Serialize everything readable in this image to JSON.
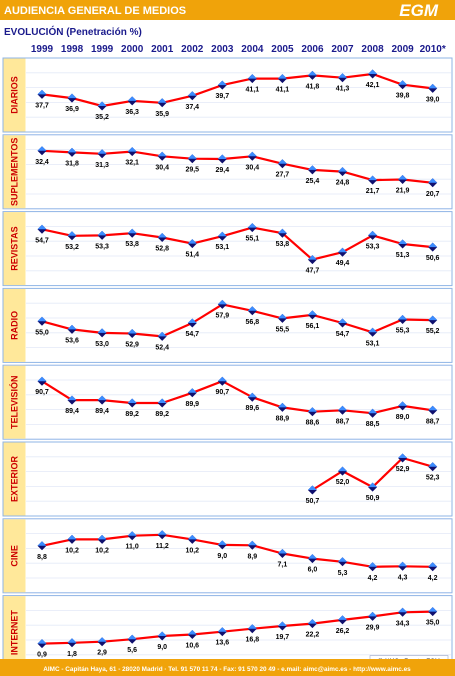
{
  "header": {
    "title": "AUDIENCIA GENERAL DE MEDIOS",
    "logo_text": "EGM",
    "bg_color": "#f0a30a"
  },
  "subtitle": "EVOLUCIÓN  (Penetración %)",
  "years": [
    "1999",
    "1998",
    "1999",
    "2000",
    "2001",
    "2002",
    "2003",
    "2004",
    "2005",
    "2006",
    "2007",
    "2008",
    "2009",
    "2010*"
  ],
  "footnote": "* Abril de 2009 a Marzo de 2010",
  "credit": "© AIMC - Fuente: EGM",
  "footer": "AIMC - Capitán Haya, 61 - 28020 Madrid  ·  Tel. 91 570 11 74 - Fax: 91 570 20 49 - e.mail: aimc@aimc.es - http://www.aimc.es",
  "colors": {
    "label_bg": "#ffe89a",
    "label_text": "#cc0000",
    "panel_border": "#8fb4e6",
    "grid": "#e3e9f7",
    "line": "#ff0000",
    "marker_dark": "#10106e",
    "marker_light": "#3c8cff",
    "title_blue": "#1a1a8c"
  },
  "chart_data": {
    "type": "line",
    "categories": [
      "1999",
      "1998",
      "1999",
      "2000",
      "2001",
      "2002",
      "2003",
      "2004",
      "2005",
      "2006",
      "2007",
      "2008",
      "2009",
      "2010*"
    ],
    "series": [
      {
        "name": "DIARIOS",
        "values": [
          37.7,
          36.9,
          35.2,
          36.3,
          35.9,
          37.4,
          39.7,
          41.1,
          41.1,
          41.8,
          41.3,
          42.1,
          39.8,
          39.0
        ],
        "labels": [
          "37,7",
          "36,9",
          "35,2",
          "36,3",
          "35,9",
          "37,4",
          "39,7",
          "41,1",
          "41,1",
          "41,8",
          "41,3",
          "42,1",
          "39,8",
          "39,0"
        ]
      },
      {
        "name": "SUPLEMENTOS",
        "values": [
          32.4,
          31.8,
          31.3,
          32.1,
          30.4,
          29.5,
          29.4,
          30.4,
          27.7,
          25.4,
          24.8,
          21.7,
          21.9,
          20.7
        ],
        "labels": [
          "32,4",
          "31,8",
          "31,3",
          "32,1",
          "30,4",
          "29,5",
          "29,4",
          "30,4",
          "27,7",
          "25,4",
          "24,8",
          "21,7",
          "21,9",
          "20,7"
        ]
      },
      {
        "name": "REVISTAS",
        "values": [
          54.7,
          53.2,
          53.3,
          53.8,
          52.8,
          51.4,
          53.1,
          55.1,
          53.8,
          47.7,
          49.4,
          53.3,
          51.3,
          50.6
        ],
        "labels": [
          "54,7",
          "53,2",
          "53,3",
          "53,8",
          "52,8",
          "51,4",
          "53,1",
          "55,1",
          "53,8",
          "47,7",
          "49,4",
          "53,3",
          "51,3",
          "50,6"
        ]
      },
      {
        "name": "RADIO",
        "values": [
          55.0,
          53.6,
          53.0,
          52.9,
          52.4,
          54.7,
          57.9,
          56.8,
          55.5,
          56.1,
          54.7,
          53.1,
          55.3,
          55.2
        ],
        "labels": [
          "55,0",
          "53,6",
          "53,0",
          "52,9",
          "52,4",
          "54,7",
          "57,9",
          "56,8",
          "55,5",
          "56,1",
          "54,7",
          "53,1",
          "55,3",
          "55,2"
        ]
      },
      {
        "name": "TELEVISIÓN",
        "values": [
          90.7,
          89.4,
          89.4,
          89.2,
          89.2,
          89.9,
          90.7,
          89.6,
          88.9,
          88.6,
          88.7,
          88.5,
          89.0,
          88.7
        ],
        "labels": [
          "90,7",
          "89,4",
          "89,4",
          "89,2",
          "89,2",
          "89,9",
          "90,7",
          "89,6",
          "88,9",
          "88,6",
          "88,7",
          "88,5",
          "89,0",
          "88,7"
        ]
      },
      {
        "name": "EXTERIOR",
        "values": [
          null,
          null,
          null,
          null,
          null,
          null,
          null,
          null,
          null,
          50.7,
          52.0,
          50.9,
          52.9,
          52.3
        ],
        "labels": [
          null,
          null,
          null,
          null,
          null,
          null,
          null,
          null,
          null,
          "50,7",
          "52,0",
          "50,9",
          "52,9",
          "52,3"
        ]
      },
      {
        "name": "CINE",
        "values": [
          8.8,
          10.2,
          10.2,
          11.0,
          11.2,
          10.2,
          9.0,
          8.9,
          7.1,
          6.0,
          5.3,
          4.2,
          4.3,
          4.2
        ],
        "labels": [
          "8,8",
          "10,2",
          "10,2",
          "11,0",
          "11,2",
          "10,2",
          "9,0",
          "8,9",
          "7,1",
          "6,0",
          "5,3",
          "4,2",
          "4,3",
          "4,2"
        ]
      },
      {
        "name": "INTERNET",
        "values": [
          0.9,
          1.8,
          2.9,
          5.6,
          9.0,
          10.6,
          13.6,
          16.8,
          19.7,
          22.2,
          26.2,
          29.9,
          34.3,
          35.0
        ],
        "labels": [
          "0,9",
          "1,8",
          "2,9",
          "5,6",
          "9,0",
          "10,6",
          "13,6",
          "16,8",
          "19,7",
          "22,2",
          "26,2",
          "29,9",
          "34,3",
          "35,0"
        ]
      }
    ]
  }
}
